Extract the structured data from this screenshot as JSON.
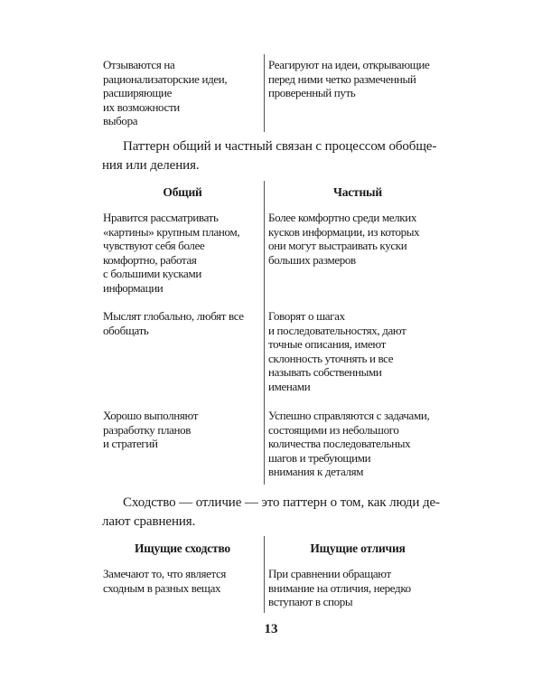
{
  "table_top": {
    "rows": [
      {
        "left": "Отзываются на\nрационализаторские идеи,\nрасширяющие\nих возможности\nвыбора",
        "right": "Реагируют на идеи, открывающие\nперед ними четко размеченный\nпроверенный путь"
      }
    ]
  },
  "paragraph_general": "Паттерн общий и частный связан с процессом обобще-\nния или деления.",
  "table_general": {
    "headers": [
      "Общий",
      "Частный"
    ],
    "rows": [
      {
        "left": "Нравится рассматривать\n«картины» крупным планом,\nчувствуют себя более\nкомфортно, работая\nс большими кусками\nинформации",
        "right": "Более комфортно среди мелких\nкусков информации, из которых\nони могут выстраивать куски\nбольших размеров"
      },
      {
        "left": "Мыслят глобально, любят все\nобобщать",
        "right": "Говорят о шагах\nи последовательностях, дают\nточные описания, имеют\nсклонность уточнять и все\nназывать собственными\nименами"
      },
      {
        "left": "Хорошо выполняют\nразработку планов\nи стратегий",
        "right": "Успешно справляются с задачами,\nсостоящими из небольшого\nколичества последовательных\nшагов и требующими\nвнимания к деталям"
      }
    ]
  },
  "paragraph_similarity": "Сходство — отличие — это паттерн о том, как люди де-\nлают сравнения.",
  "table_similarity": {
    "headers": [
      "Ищущие сходство",
      "Ищущие отличия"
    ],
    "rows": [
      {
        "left": "Замечают то, что является\nсходным в разных вещах",
        "right": "При сравнении обращают\nвнимание на отличия, нередко\nвступают в споры"
      }
    ]
  },
  "page_number": "13"
}
